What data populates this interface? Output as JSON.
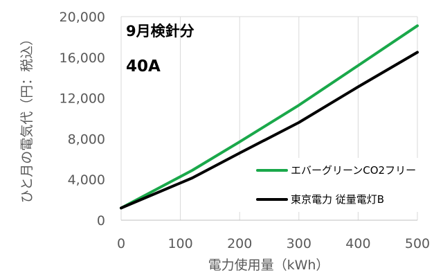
{
  "chart_data": {
    "type": "line",
    "xlabel": "電力使用量（kWh）",
    "ylabel": "ひと月の電気代（円：税込）",
    "xlim": [
      0,
      500
    ],
    "ylim": [
      0,
      20000
    ],
    "xticks": [
      0,
      100,
      200,
      300,
      400,
      500
    ],
    "yticks": [
      0,
      4000,
      8000,
      12000,
      16000,
      20000
    ],
    "xtick_labels": [
      "0",
      "100",
      "200",
      "300",
      "400",
      "500"
    ],
    "ytick_labels": [
      "0",
      "4,000",
      "8,000",
      "12,000",
      "16,000",
      "20,000"
    ],
    "grid": "vertical",
    "legend_position": "right",
    "annotations": [
      "9月検針分",
      "40A"
    ],
    "series": [
      {
        "name": "エバーグリーンCO2フリー",
        "color": "#1aa84a",
        "x": [
          0,
          120,
          200,
          300,
          400,
          500
        ],
        "y": [
          1200,
          4900,
          7700,
          11300,
          15200,
          19100
        ]
      },
      {
        "name": "東京電力 従量電灯B",
        "color": "#000000",
        "x": [
          0,
          120,
          200,
          300,
          400,
          500
        ],
        "y": [
          1200,
          4150,
          6600,
          9600,
          13100,
          16500
        ]
      }
    ]
  }
}
